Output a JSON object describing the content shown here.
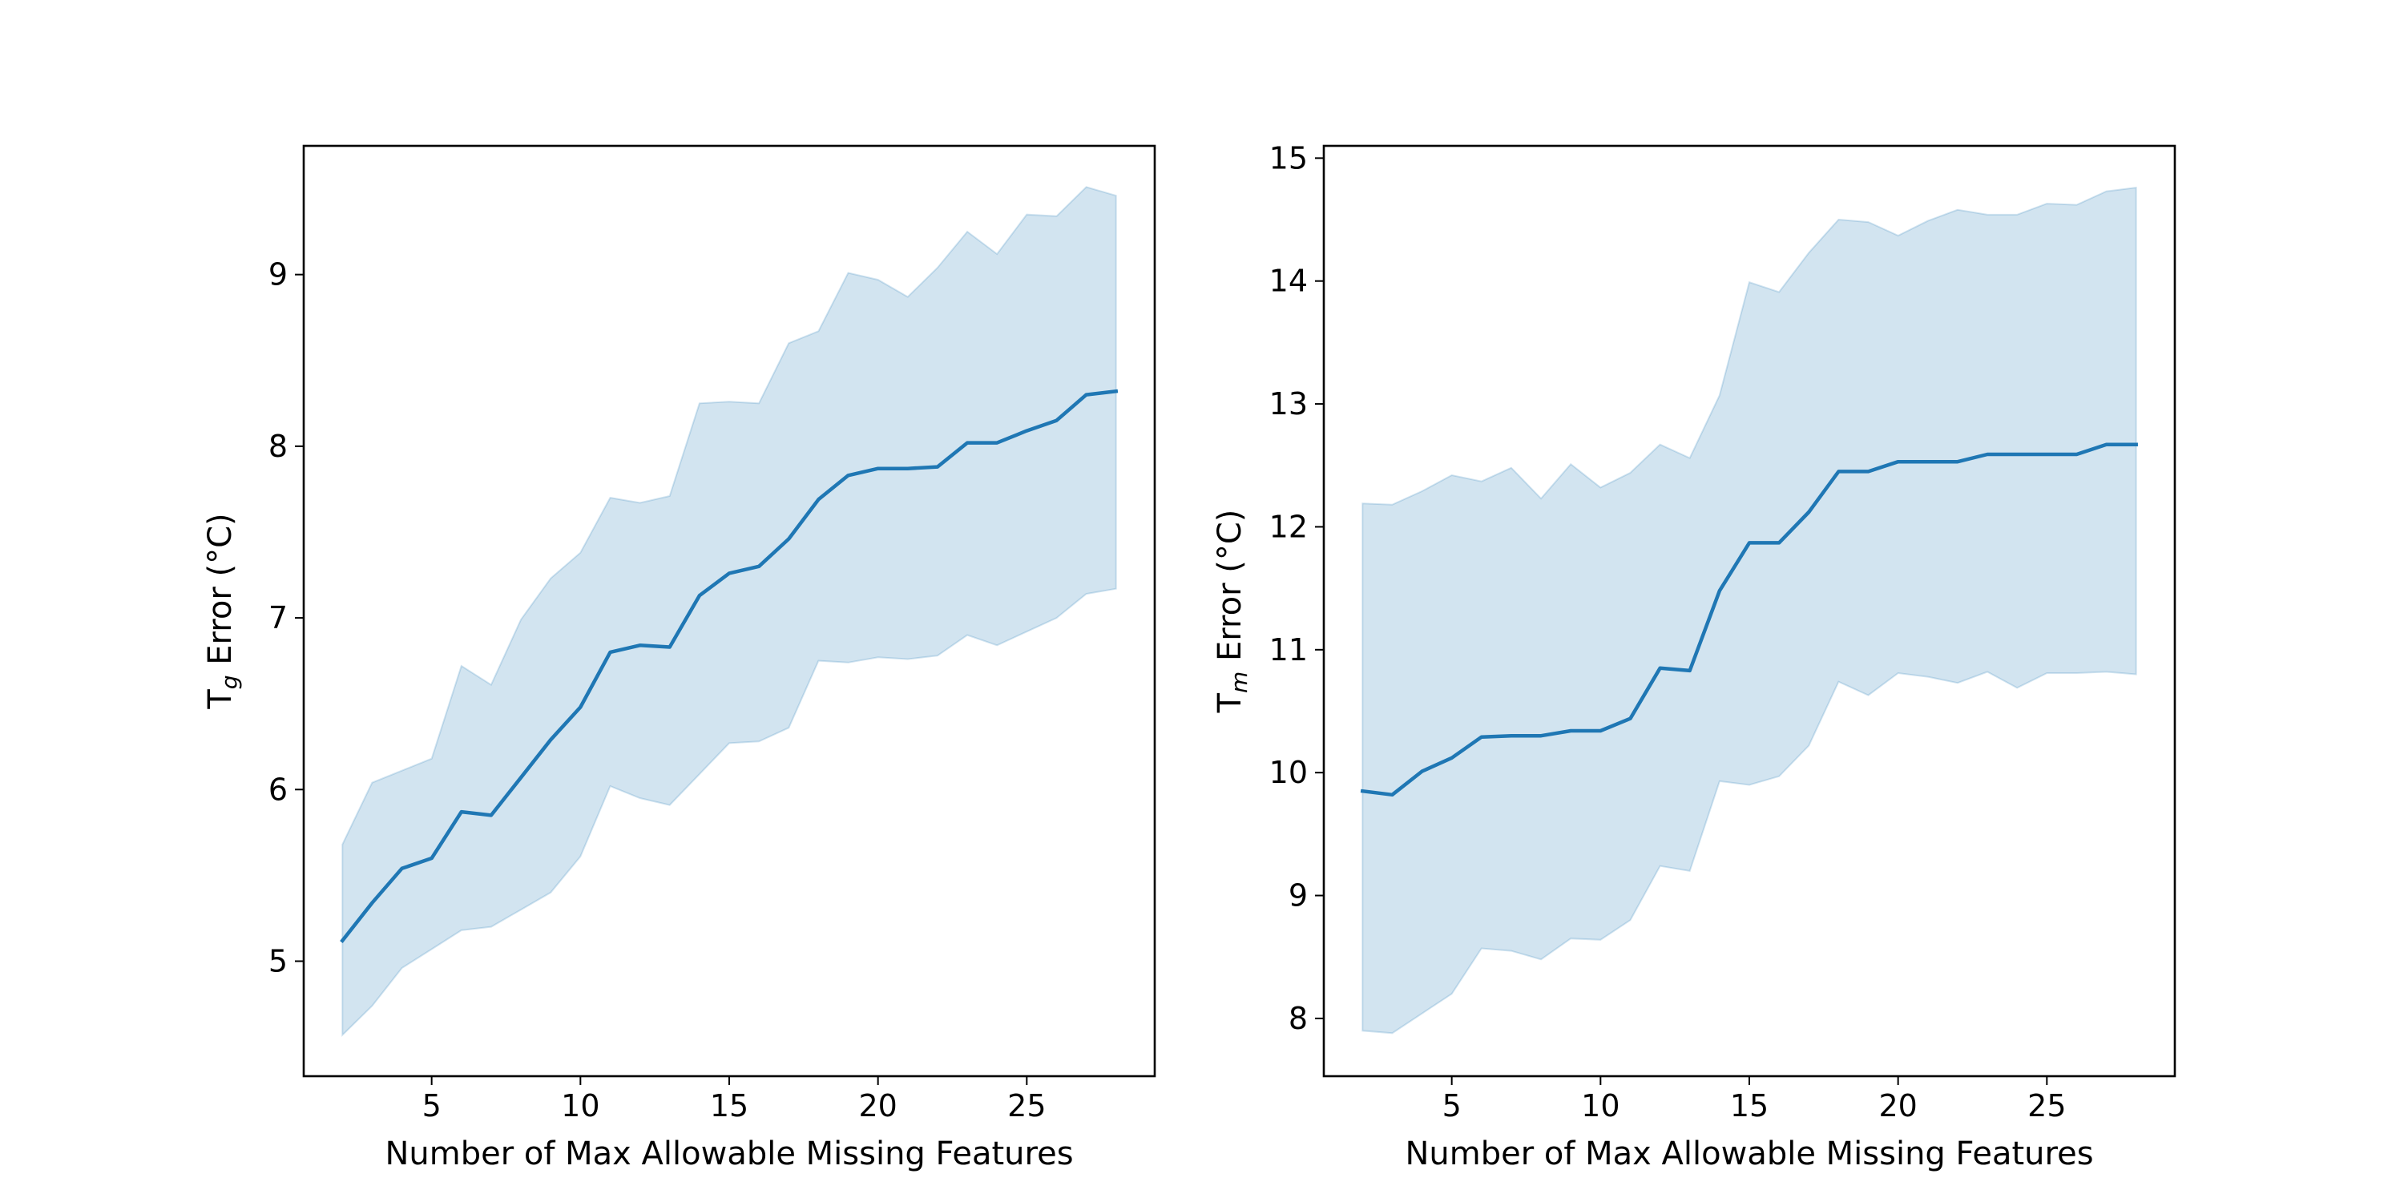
{
  "chart_data": [
    {
      "type": "line",
      "xlabel": "Number of Max Allowable Missing Features",
      "ylabel": "T_g Error (°C)",
      "ylabel_main": "T",
      "ylabel_sub": "g",
      "ylabel_rest": " Error (°C)",
      "xlim": [
        0.7,
        29.3
      ],
      "ylim": [
        4.33,
        9.75
      ],
      "xticks": [
        5,
        10,
        15,
        20,
        25
      ],
      "yticks": [
        5,
        6,
        7,
        8,
        9
      ],
      "grid": false,
      "line_color": "#1f77b4",
      "band_color": "#1f77b4",
      "x": [
        2,
        3,
        4,
        5,
        6,
        7,
        8,
        9,
        10,
        11,
        12,
        13,
        14,
        15,
        16,
        17,
        18,
        19,
        20,
        21,
        22,
        23,
        24,
        25,
        26,
        27,
        28
      ],
      "series": [
        {
          "y": [
            5.12,
            5.34,
            5.54,
            5.6,
            5.87,
            5.85,
            6.07,
            6.29,
            6.48,
            6.8,
            6.84,
            6.83,
            7.13,
            7.26,
            7.3,
            7.46,
            7.69,
            7.83,
            7.87,
            7.87,
            7.88,
            8.02,
            8.02,
            8.09,
            8.15,
            8.3,
            8.32
          ],
          "lower": [
            4.57,
            4.74,
            4.96,
            5.07,
            5.18,
            5.2,
            5.3,
            5.4,
            5.61,
            6.02,
            5.95,
            5.91,
            6.09,
            6.27,
            6.28,
            6.36,
            6.75,
            6.74,
            6.77,
            6.76,
            6.78,
            6.9,
            6.84,
            6.92,
            7.0,
            7.14,
            7.17
          ],
          "upper": [
            5.68,
            6.04,
            6.11,
            6.18,
            6.72,
            6.61,
            6.99,
            7.23,
            7.38,
            7.7,
            7.67,
            7.71,
            8.25,
            8.26,
            8.25,
            8.6,
            8.67,
            9.01,
            8.97,
            8.87,
            9.04,
            9.25,
            9.12,
            9.35,
            9.34,
            9.51,
            9.46
          ]
        }
      ]
    },
    {
      "type": "line",
      "xlabel": "Number of Max Allowable Missing Features",
      "ylabel": "T_m Error (°C)",
      "ylabel_main": "T",
      "ylabel_sub": "m",
      "ylabel_rest": " Error (°C)",
      "xlim": [
        0.7,
        29.3
      ],
      "ylim": [
        7.53,
        15.1
      ],
      "xticks": [
        5,
        10,
        15,
        20,
        25
      ],
      "yticks": [
        8,
        9,
        10,
        11,
        12,
        13,
        14,
        15
      ],
      "grid": false,
      "line_color": "#1f77b4",
      "band_color": "#1f77b4",
      "x": [
        2,
        3,
        4,
        5,
        6,
        7,
        8,
        9,
        10,
        11,
        12,
        13,
        14,
        15,
        16,
        17,
        18,
        19,
        20,
        21,
        22,
        23,
        24,
        25,
        26,
        27,
        28
      ],
      "series": [
        {
          "y": [
            9.85,
            9.82,
            10.01,
            10.12,
            10.29,
            10.3,
            10.3,
            10.34,
            10.34,
            10.44,
            10.85,
            10.83,
            11.48,
            11.87,
            11.87,
            12.12,
            12.45,
            12.45,
            12.53,
            12.53,
            12.53,
            12.59,
            12.59,
            12.59,
            12.59,
            12.67,
            12.67
          ],
          "lower": [
            7.9,
            7.88,
            8.04,
            8.2,
            8.57,
            8.55,
            8.48,
            8.65,
            8.64,
            8.8,
            9.24,
            9.2,
            9.93,
            9.9,
            9.97,
            10.22,
            10.74,
            10.63,
            10.81,
            10.78,
            10.73,
            10.82,
            10.69,
            10.81,
            10.81,
            10.82,
            10.8
          ],
          "upper": [
            12.19,
            12.18,
            12.29,
            12.42,
            12.37,
            12.48,
            12.23,
            12.51,
            12.32,
            12.44,
            12.67,
            12.56,
            13.07,
            13.99,
            13.91,
            14.23,
            14.5,
            14.48,
            14.37,
            14.49,
            14.58,
            14.54,
            14.54,
            14.63,
            14.62,
            14.73,
            14.76
          ]
        }
      ]
    }
  ]
}
